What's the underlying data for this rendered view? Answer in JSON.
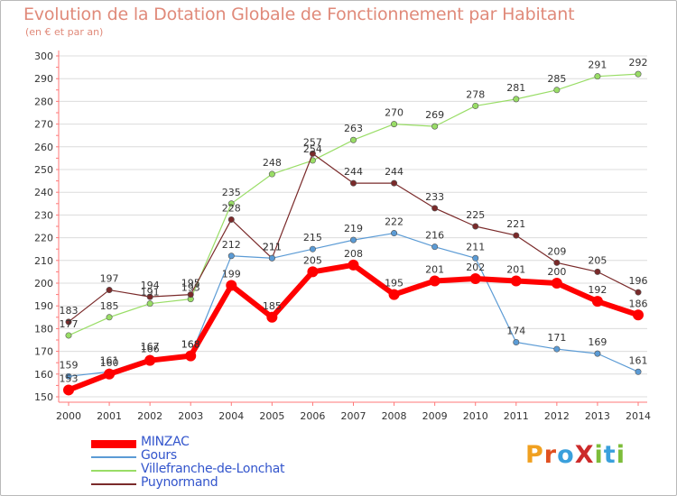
{
  "title": "Evolution de la Dotation Globale de Fonctionnement par Habitant",
  "subtitle": "(en € et par an)",
  "logo": {
    "text": "ProXiti",
    "letters": [
      {
        "ch": "P",
        "color": "#f0a020"
      },
      {
        "ch": "r",
        "color": "#e05020"
      },
      {
        "ch": "o",
        "color": "#3aa0dc"
      },
      {
        "ch": "X",
        "color": "#cc2a2a"
      },
      {
        "ch": "i",
        "color": "#7dbd3a"
      },
      {
        "ch": "t",
        "color": "#3aa0dc"
      },
      {
        "ch": "i",
        "color": "#7dbd3a"
      }
    ]
  },
  "chart_data": {
    "type": "line",
    "x": [
      2000,
      2001,
      2002,
      2003,
      2004,
      2005,
      2006,
      2007,
      2008,
      2009,
      2010,
      2011,
      2012,
      2013,
      2014
    ],
    "ylim": [
      150,
      300
    ],
    "yticks": [
      150,
      160,
      170,
      180,
      190,
      200,
      210,
      220,
      230,
      240,
      250,
      260,
      270,
      280,
      290,
      300
    ],
    "grid": "horizontal",
    "legend_position": "bottom-left",
    "series": [
      {
        "name": "MINZAC",
        "color": "#ff0000",
        "values": [
          153,
          160,
          166,
          168,
          199,
          185,
          205,
          208,
          195,
          201,
          202,
          201,
          200,
          192,
          186
        ]
      },
      {
        "name": "Gours",
        "color": "#5b9bd5",
        "values": [
          159,
          161,
          167,
          168,
          212,
          211,
          215,
          219,
          222,
          216,
          211,
          174,
          171,
          169,
          161
        ]
      },
      {
        "name": "Villefranche-de-Lonchat",
        "color": "#99dd66",
        "values": [
          177,
          185,
          191,
          193,
          235,
          248,
          254,
          263,
          270,
          269,
          278,
          281,
          285,
          291,
          292
        ]
      },
      {
        "name": "Puynormand",
        "color": "#7a2a2a",
        "values": [
          183,
          197,
          194,
          195,
          228,
          211,
          257,
          244,
          244,
          233,
          225,
          221,
          209,
          205,
          196
        ]
      }
    ]
  }
}
